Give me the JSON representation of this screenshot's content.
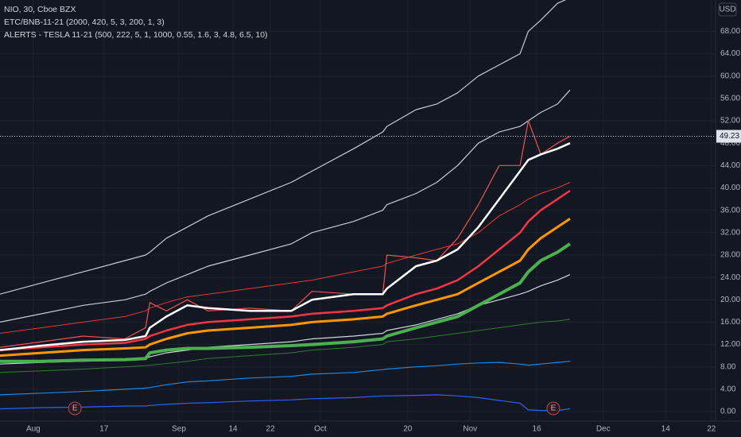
{
  "chart_data": {
    "type": "line",
    "legend_lines": [
      "NIO, 30, Cboe BZX",
      "ETC/BNB-11-21 (2000, 420, 5, 3, 200, 1, 3)",
      "ALERTS - TESLA 11-21 (500, 222, 5, 1, 1000, 0.55, 1.6, 3, 4.8, 6.5, 10)"
    ],
    "currency": "USD",
    "last_price": 49.23,
    "x": [
      0,
      10,
      20,
      30,
      35,
      36,
      40,
      45,
      50,
      60,
      70,
      75,
      85,
      92,
      93,
      100,
      105,
      110,
      115,
      120,
      125,
      127,
      130,
      134,
      137
    ],
    "xlim": [
      0,
      172
    ],
    "xticks": [
      {
        "value": 8,
        "label": "Aug"
      },
      {
        "value": 25,
        "label": "17"
      },
      {
        "value": 43,
        "label": "Sep"
      },
      {
        "value": 56,
        "label": "14"
      },
      {
        "value": 65,
        "label": "22"
      },
      {
        "value": 77,
        "label": "Oct"
      },
      {
        "value": 98,
        "label": "20"
      },
      {
        "value": 113,
        "label": "Nov"
      },
      {
        "value": 129,
        "label": "16"
      },
      {
        "value": 145,
        "label": "Dec"
      },
      {
        "value": 160,
        "label": "14"
      },
      {
        "value": 171,
        "label": "22"
      }
    ],
    "ylim": [
      -1.7,
      73.6
    ],
    "yticks": [
      {
        "value": 0,
        "label": "0.00"
      },
      {
        "value": 4,
        "label": "4.00"
      },
      {
        "value": 8,
        "label": "8.00"
      },
      {
        "value": 12,
        "label": "12.00"
      },
      {
        "value": 16,
        "label": "16.00"
      },
      {
        "value": 20,
        "label": "20.00"
      },
      {
        "value": 24,
        "label": "24.00"
      },
      {
        "value": 28,
        "label": "28.00"
      },
      {
        "value": 32,
        "label": "32.00"
      },
      {
        "value": 36,
        "label": "36.00"
      },
      {
        "value": 40,
        "label": "40.00"
      },
      {
        "value": 44,
        "label": "44.00"
      },
      {
        "value": 48,
        "label": "48.00"
      },
      {
        "value": 52,
        "label": "52.00"
      },
      {
        "value": 56,
        "label": "56.00"
      },
      {
        "value": 60,
        "label": "60.00"
      },
      {
        "value": 64,
        "label": "64.00"
      },
      {
        "value": 68,
        "label": "68.00"
      }
    ],
    "grid": true,
    "events": [
      {
        "label": "E",
        "x": 18
      },
      {
        "label": "E",
        "x": 133
      }
    ],
    "series": [
      {
        "color": "#2962ff",
        "values": [
          0.5,
          0.7,
          0.8,
          1,
          1,
          1.1,
          1.3,
          1.5,
          1.6,
          1.9,
          2.1,
          2.3,
          2.5,
          2.8,
          2.8,
          2.9,
          3,
          2.8,
          2.5,
          2,
          1.5,
          0.3,
          0.2,
          0.2,
          0.5
        ]
      },
      {
        "color": "#1e88e5",
        "values": [
          3,
          3.3,
          3.6,
          4,
          4.2,
          4.3,
          4.8,
          5.3,
          5.5,
          6,
          6.3,
          6.7,
          7,
          7.5,
          7.6,
          8,
          8.2,
          8.5,
          8.7,
          8.8,
          8.5,
          8.3,
          8.5,
          8.8,
          9
        ]
      },
      {
        "color": "#2e7d32",
        "values": [
          7,
          7.3,
          7.6,
          8,
          8.2,
          8.3,
          8.6,
          9,
          9.5,
          10,
          10.5,
          11,
          11.5,
          12,
          12.5,
          13,
          13.5,
          14,
          14.5,
          15,
          15.5,
          15.7,
          16,
          16.2,
          16.5
        ]
      },
      {
        "color": "#d1d4dc",
        "values": [
          8.5,
          8.8,
          9,
          9.3,
          9.5,
          9.8,
          10.5,
          11,
          11.5,
          12,
          12.5,
          13,
          13.5,
          14,
          14.5,
          15.5,
          16.5,
          17.5,
          19,
          20,
          21,
          21.5,
          22.5,
          23.5,
          24.5
        ]
      },
      {
        "color": "#4caf50",
        "values": [
          9,
          9,
          9.2,
          9.3,
          9.5,
          10.5,
          11,
          11.3,
          11.3,
          11.5,
          11.8,
          12,
          12.5,
          13,
          13.5,
          15,
          16,
          17,
          19,
          21,
          23,
          25,
          27,
          28.5,
          30
        ]
      },
      {
        "color": "#ff9800",
        "values": [
          10,
          10.5,
          11,
          11.3,
          11.5,
          12,
          13,
          14,
          14.5,
          15,
          15.5,
          16,
          16.5,
          17,
          17.5,
          19,
          20,
          21,
          23,
          25,
          27,
          29,
          31,
          33,
          34.5
        ]
      },
      {
        "color": "#f23645",
        "values": [
          11,
          11.5,
          12,
          12.3,
          13,
          13.5,
          14.5,
          15.5,
          16,
          16.5,
          17,
          17.5,
          18,
          18.5,
          19,
          21,
          22,
          23.5,
          26,
          29,
          32,
          34,
          36,
          38,
          39.5
        ]
      },
      {
        "color": "#e53935",
        "values": [
          14,
          15,
          16,
          17,
          18,
          18.5,
          19.5,
          20.5,
          21,
          22,
          23,
          23.5,
          25,
          26,
          26.5,
          28,
          29,
          30,
          32,
          35,
          37,
          38,
          39,
          40,
          41
        ]
      },
      {
        "color": "#c8cbd2",
        "values": [
          16,
          17.5,
          19,
          20,
          21,
          21.5,
          23,
          24.5,
          26,
          28,
          30,
          32,
          34,
          36,
          37,
          39,
          41,
          44,
          48,
          50,
          51,
          52,
          53.5,
          55,
          57.5
        ]
      },
      {
        "color": "#c8cbd2",
        "values": [
          21,
          23,
          25,
          27,
          28,
          28.5,
          31,
          33,
          35,
          38,
          41,
          43,
          47,
          50,
          51,
          54,
          55,
          57,
          60,
          62,
          64,
          68,
          70,
          73,
          74
        ]
      },
      {
        "color": "#ef5350",
        "values": [
          11.5,
          12.5,
          13.5,
          13,
          15,
          19.5,
          18,
          20,
          18,
          18.5,
          18,
          21.5,
          21,
          21,
          28,
          27.5,
          27,
          31,
          37,
          44,
          44,
          52,
          46,
          48,
          49.23
        ]
      },
      {
        "color": "#ffffff",
        "values": [
          11,
          11.8,
          12.5,
          12.8,
          13.5,
          15,
          17,
          19,
          18.5,
          18,
          18,
          20,
          21,
          21,
          22,
          26,
          27,
          29,
          33,
          38,
          43,
          45,
          46,
          47,
          48
        ]
      }
    ]
  }
}
